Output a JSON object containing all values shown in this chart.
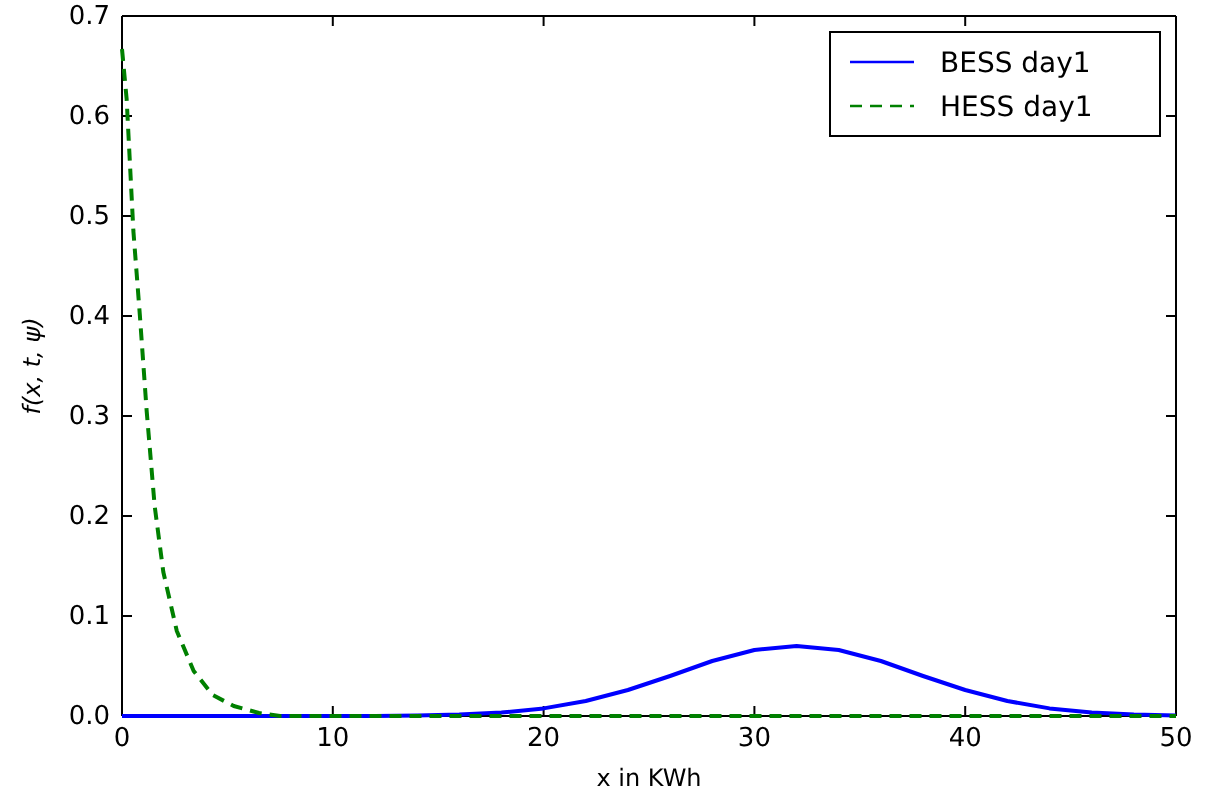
{
  "chart_data": {
    "type": "line",
    "xlabel": "x in KWh",
    "ylabel": "f(x, t, ψ)",
    "xlim": [
      0,
      50
    ],
    "ylim": [
      0,
      0.7
    ],
    "xticks": [
      0,
      10,
      20,
      30,
      40,
      50
    ],
    "yticks": [
      {
        "value": 0,
        "label": "0.0"
      },
      {
        "value": 0.1,
        "label": "0.1"
      },
      {
        "value": 0.2,
        "label": "0.2"
      },
      {
        "value": 0.3,
        "label": "0.3"
      },
      {
        "value": 0.4,
        "label": "0.4"
      },
      {
        "value": 0.5,
        "label": "0.5"
      },
      {
        "value": 0.6,
        "label": "0.6"
      },
      {
        "value": 0.7,
        "label": "0.7"
      }
    ],
    "grid": false,
    "legend": "top right",
    "marker": "none",
    "series": [
      {
        "name": "BESS day1",
        "color": "#0000ff",
        "line_style": "solid",
        "x": [
          0,
          4,
          8,
          12,
          14,
          16,
          18,
          20,
          22,
          24,
          26,
          28,
          30,
          32,
          34,
          36,
          38,
          40,
          42,
          44,
          46,
          48,
          50
        ],
        "values": [
          0,
          0,
          0,
          0,
          0.0005,
          0.0014,
          0.0034,
          0.0076,
          0.015,
          0.026,
          0.04,
          0.055,
          0.066,
          0.07,
          0.066,
          0.055,
          0.04,
          0.026,
          0.015,
          0.0076,
          0.0034,
          0.0014,
          0.0005
        ]
      },
      {
        "name": "HESS day1",
        "color": "#008000",
        "line_style": "dashed",
        "x": [
          0,
          0.22,
          0.54,
          0.85,
          1.17,
          1.55,
          1.96,
          2.6,
          3.4,
          4.3,
          5.3,
          6.5,
          7.5,
          10,
          20,
          30,
          40,
          50
        ],
        "values": [
          0.667,
          0.617,
          0.485,
          0.4,
          0.305,
          0.21,
          0.144,
          0.085,
          0.045,
          0.021,
          0.01,
          0.003,
          0,
          0,
          0,
          0,
          0,
          0
        ]
      }
    ]
  }
}
